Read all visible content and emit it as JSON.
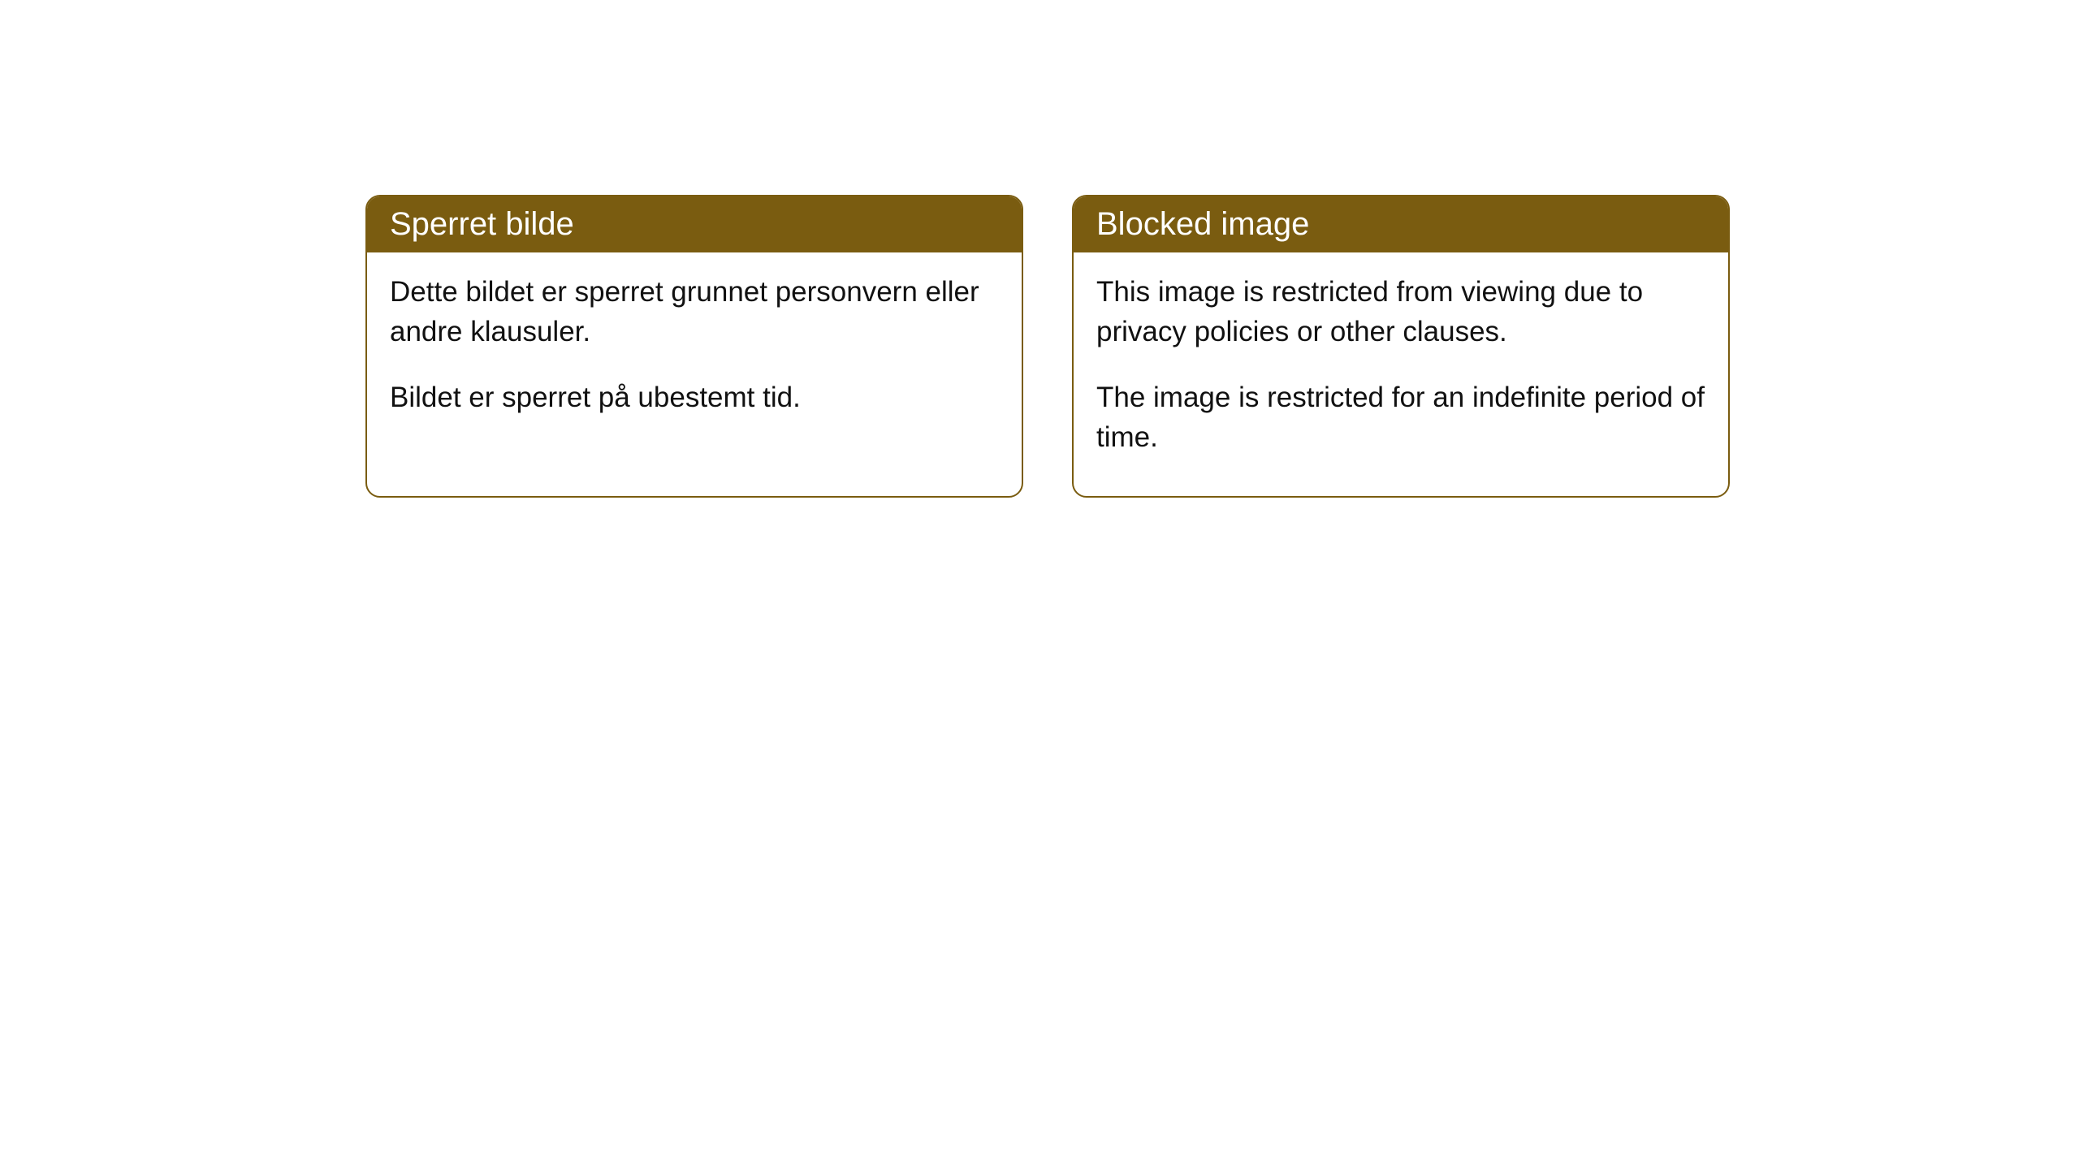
{
  "cards": [
    {
      "title": "Sperret bilde",
      "paragraph1": "Dette bildet er sperret grunnet personvern eller andre klausuler.",
      "paragraph2": "Bildet er sperret på ubestemt tid."
    },
    {
      "title": "Blocked image",
      "paragraph1": "This image is restricted from viewing due to privacy policies or other clauses.",
      "paragraph2": "The image is restricted for an indefinite period of time."
    }
  ],
  "style": {
    "header_background": "#7a5c10",
    "header_text_color": "#ffffff",
    "border_color": "#7a5c10",
    "body_background": "#ffffff",
    "body_text_color": "#111111",
    "border_radius": 18,
    "title_fontsize": 40,
    "body_fontsize": 35
  }
}
